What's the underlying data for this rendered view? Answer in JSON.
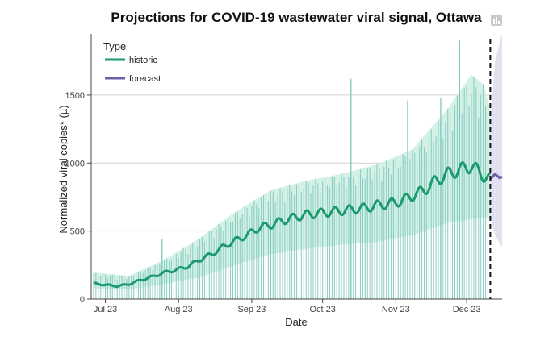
{
  "chart_data": {
    "type": "line",
    "title": "Projections for COVID-19 wastewater viral signal, Ottawa",
    "xlabel": "Date",
    "ylabel": "Normalized viral copies* (µ)",
    "x_range_days": [
      -6,
      168
    ],
    "ylim": [
      0,
      1950
    ],
    "x_ticks": [
      {
        "label": "Jul 23",
        "day": 0
      },
      {
        "label": "Aug 23",
        "day": 31
      },
      {
        "label": "Sep 23",
        "day": 62
      },
      {
        "label": "Oct 23",
        "day": 92
      },
      {
        "label": "Nov 23",
        "day": 123
      },
      {
        "label": "Dec 23",
        "day": 153
      }
    ],
    "y_ticks": [
      0,
      500,
      1000,
      1500
    ],
    "forecast_start_day": 163,
    "legend": {
      "title": "Type",
      "position": "top-left",
      "items": [
        {
          "label": "historic",
          "color": "#1a9a6c"
        },
        {
          "label": "forecast",
          "color": "#6e5fa8"
        }
      ]
    },
    "colors": {
      "historic_line": "#1a9a6c",
      "historic_band": "#cdeee2",
      "observations": "#7fc7c0",
      "forecast_line": "#6e5fa8",
      "forecast_band": "#e0ddf0",
      "grid": "#d2d2d2",
      "divider": "#111111"
    },
    "series": [
      {
        "name": "historic",
        "points": [
          [
            -5,
            115
          ],
          [
            0,
            105
          ],
          [
            5,
            95
          ],
          [
            10,
            110
          ],
          [
            15,
            140
          ],
          [
            20,
            165
          ],
          [
            25,
            195
          ],
          [
            30,
            215
          ],
          [
            35,
            240
          ],
          [
            40,
            290
          ],
          [
            45,
            330
          ],
          [
            50,
            385
          ],
          [
            55,
            430
          ],
          [
            60,
            470
          ],
          [
            65,
            525
          ],
          [
            70,
            545
          ],
          [
            75,
            575
          ],
          [
            80,
            600
          ],
          [
            85,
            620
          ],
          [
            90,
            630
          ],
          [
            95,
            640
          ],
          [
            100,
            650
          ],
          [
            105,
            660
          ],
          [
            110,
            670
          ],
          [
            115,
            690
          ],
          [
            120,
            700
          ],
          [
            125,
            720
          ],
          [
            130,
            760
          ],
          [
            135,
            800
          ],
          [
            140,
            870
          ],
          [
            145,
            920
          ],
          [
            150,
            950
          ],
          [
            155,
            980
          ],
          [
            160,
            910
          ],
          [
            163,
            880
          ]
        ]
      },
      {
        "name": "forecast",
        "points": [
          [
            163,
            880
          ],
          [
            165,
            920
          ],
          [
            167,
            890
          ],
          [
            168,
            900
          ]
        ]
      }
    ],
    "historic_band": {
      "lower": [
        [
          -5,
          80
        ],
        [
          10,
          70
        ],
        [
          25,
          110
        ],
        [
          40,
          160
        ],
        [
          55,
          250
        ],
        [
          70,
          330
        ],
        [
          85,
          370
        ],
        [
          100,
          400
        ],
        [
          115,
          420
        ],
        [
          130,
          470
        ],
        [
          145,
          560
        ],
        [
          160,
          600
        ],
        [
          163,
          590
        ]
      ],
      "upper": [
        [
          -5,
          195
        ],
        [
          10,
          170
        ],
        [
          25,
          290
        ],
        [
          40,
          450
        ],
        [
          55,
          640
        ],
        [
          70,
          800
        ],
        [
          85,
          870
        ],
        [
          100,
          920
        ],
        [
          115,
          990
        ],
        [
          130,
          1100
        ],
        [
          145,
          1400
        ],
        [
          155,
          1650
        ],
        [
          160,
          1580
        ],
        [
          163,
          1400
        ]
      ]
    },
    "forecast_band": {
      "lower": [
        [
          163,
          600
        ],
        [
          165,
          470
        ],
        [
          168,
          380
        ]
      ],
      "upper": [
        [
          163,
          1300
        ],
        [
          165,
          1750
        ],
        [
          168,
          1950
        ]
      ]
    },
    "observations": {
      "spikes": [
        {
          "day": 104,
          "value": 1620
        },
        {
          "day": 128,
          "value": 1460
        },
        {
          "day": 142,
          "value": 1480
        },
        {
          "day": 150,
          "value": 1900
        },
        {
          "day": 24,
          "value": 440
        },
        {
          "day": 70,
          "value": 620
        }
      ]
    }
  }
}
